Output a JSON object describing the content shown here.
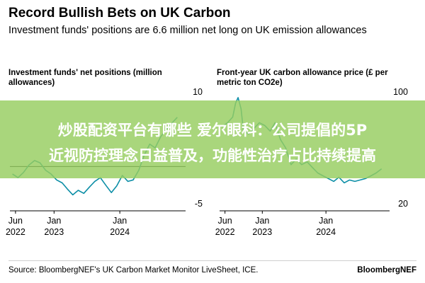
{
  "header": {
    "title": "Record Bullish Bets on UK Carbon",
    "subtitle": "Investment funds' positions are 6.6 million net long on UK emission allowances"
  },
  "overlay": {
    "line1": "炒股配资平台有哪些 爱尔眼科：公司提倡的5P",
    "line2": "近视防控理念日益普及，功能性治疗占比持续提高"
  },
  "footer": {
    "source": "Source: BloombergNEF's UK Carbon Market Monitor LiveSheet, ICE.",
    "brand": "BloombergNEF"
  },
  "colors": {
    "line": "#0c8ea6",
    "zero_line": "#000000",
    "axis_text": "#000000",
    "banner": "#96cd5f"
  },
  "chart_data": [
    {
      "type": "line",
      "title": "Investment funds' net positions (million allowances)",
      "y_axis_side": "right",
      "ylim": [
        -5,
        10
      ],
      "yticks": [
        10,
        -5
      ],
      "zero_line": true,
      "x_range": [
        "2022-05-01",
        "2024-12-31"
      ],
      "x_ticks": [
        {
          "date": "2022-06-01",
          "line1": "Jun",
          "line2": "2022"
        },
        {
          "date": "2023-01-01",
          "line1": "Jan",
          "line2": "2023"
        },
        {
          "date": "2024-01-01",
          "line1": "Jan",
          "line2": "2024"
        }
      ],
      "series": [
        {
          "x": [
            "2022-05-15",
            "2022-06-15",
            "2022-07-15",
            "2022-08-15",
            "2022-09-15",
            "2022-10-15",
            "2022-11-15",
            "2022-12-15",
            "2023-01-15",
            "2023-02-15",
            "2023-03-15",
            "2023-04-15",
            "2023-05-15",
            "2023-06-15",
            "2023-07-15",
            "2023-08-15",
            "2023-09-15",
            "2023-10-15",
            "2023-11-15",
            "2023-12-15",
            "2024-01-15",
            "2024-02-15",
            "2024-03-15",
            "2024-04-15",
            "2024-05-15",
            "2024-06-15",
            "2024-07-15",
            "2024-08-15",
            "2024-09-15",
            "2024-10-15",
            "2024-11-15"
          ],
          "values": [
            -1.0,
            -1.5,
            -0.8,
            0.2,
            0.8,
            0.5,
            -0.5,
            -1.0,
            -1.8,
            -2.2,
            -3.0,
            -3.8,
            -3.2,
            -3.6,
            -2.8,
            -2.0,
            -1.5,
            -2.5,
            -3.5,
            -2.6,
            -1.2,
            -2.0,
            -1.8,
            -0.5,
            1.5,
            3.0,
            2.5,
            4.0,
            5.0,
            5.8,
            6.6
          ]
        }
      ]
    },
    {
      "type": "line",
      "title": "Front-year UK carbon allowance price (£ per metric ton CO2e)",
      "y_axis_side": "right",
      "ylim": [
        20,
        100
      ],
      "yticks": [
        100,
        20
      ],
      "zero_line": false,
      "x_range": [
        "2022-05-01",
        "2024-12-31"
      ],
      "x_ticks": [
        {
          "date": "2022-06-01",
          "line1": "Jun",
          "line2": "2022"
        },
        {
          "date": "2023-01-01",
          "line1": "Jan",
          "line2": "2023"
        },
        {
          "date": "2024-01-01",
          "line1": "Jan",
          "line2": "2024"
        }
      ],
      "series": [
        {
          "x": [
            "2022-05-15",
            "2022-06-15",
            "2022-07-15",
            "2022-08-01",
            "2022-08-15",
            "2022-09-01",
            "2022-09-15",
            "2022-10-15",
            "2022-11-15",
            "2022-12-15",
            "2023-01-15",
            "2023-02-15",
            "2023-03-15",
            "2023-04-15",
            "2023-05-15",
            "2023-06-15",
            "2023-07-15",
            "2023-08-15",
            "2023-09-15",
            "2023-10-15",
            "2023-11-15",
            "2023-12-15",
            "2024-01-15",
            "2024-02-15",
            "2024-03-15",
            "2024-04-15",
            "2024-05-15",
            "2024-06-15",
            "2024-07-15",
            "2024-08-15",
            "2024-09-15",
            "2024-10-15",
            "2024-11-15"
          ],
          "values": [
            75,
            78,
            82,
            92,
            96,
            88,
            72,
            70,
            74,
            78,
            76,
            72,
            78,
            66,
            60,
            48,
            52,
            48,
            50,
            46,
            42,
            40,
            38,
            36,
            39,
            35,
            37,
            36,
            37,
            38,
            40,
            42,
            45
          ]
        }
      ]
    }
  ]
}
